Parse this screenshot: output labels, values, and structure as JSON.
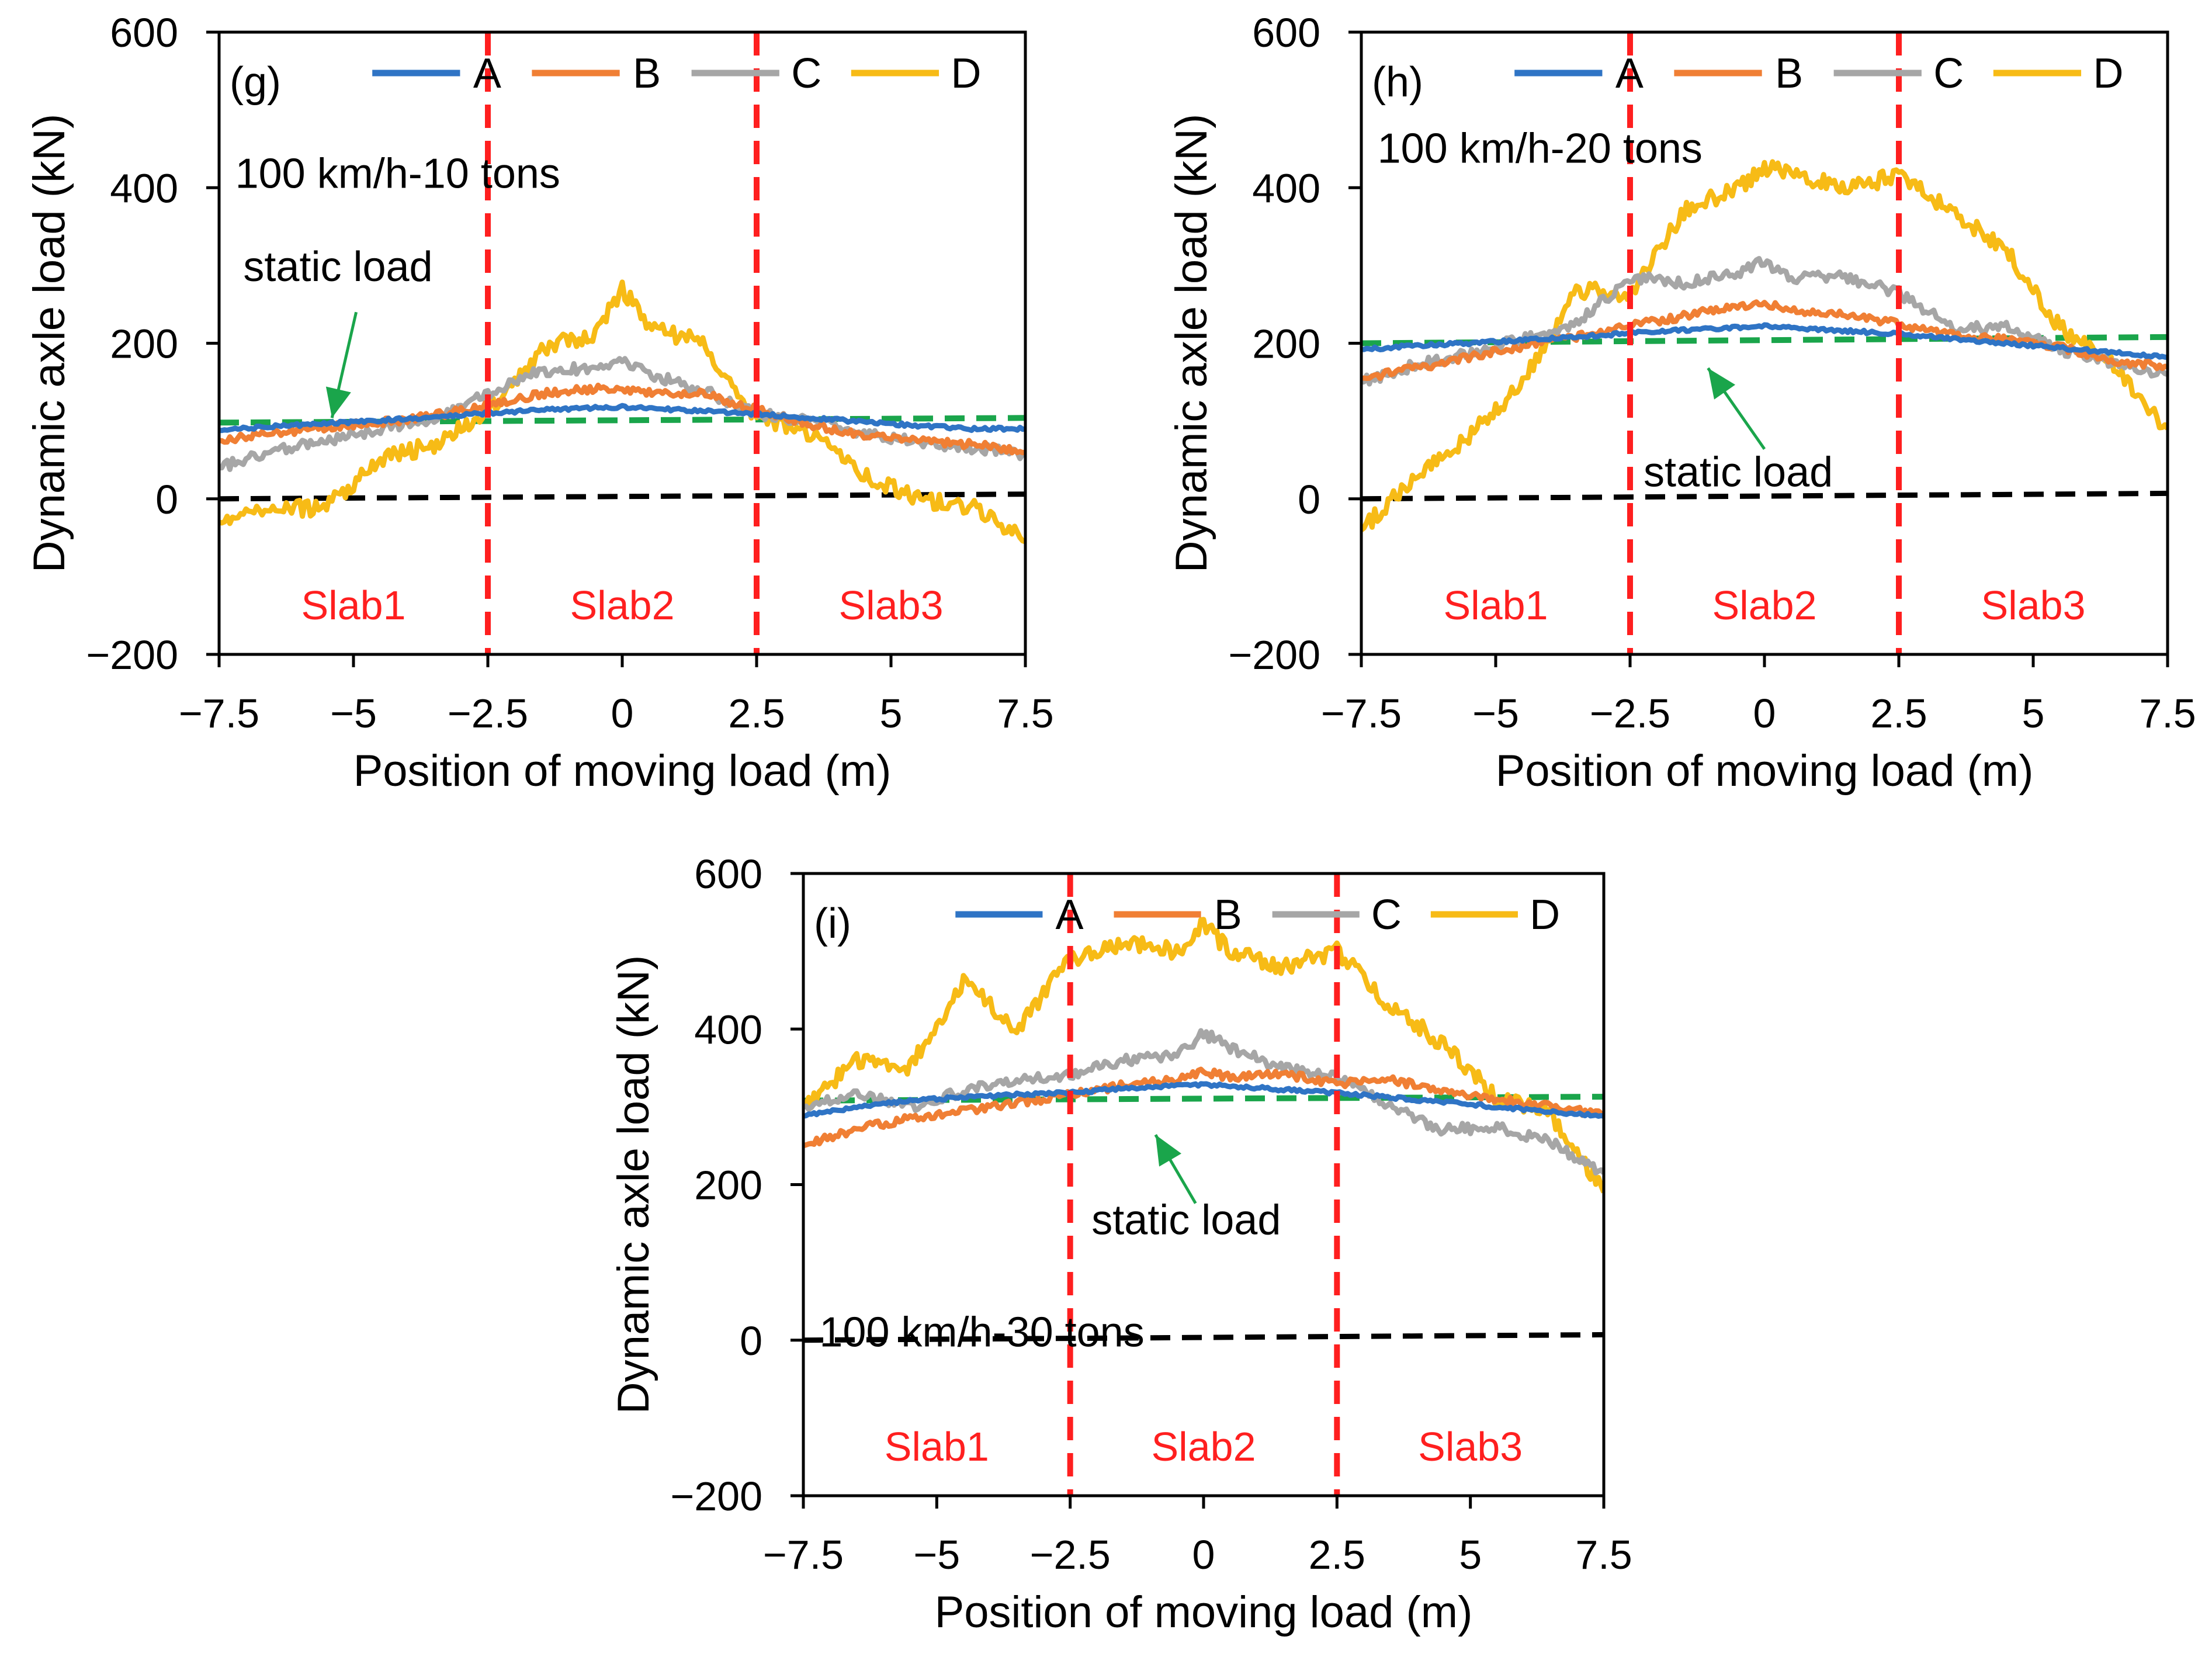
{
  "colors": {
    "A": "#2f74c5",
    "B": "#f07f34",
    "C": "#a6a6a6",
    "D": "#f7bb16",
    "static": "#1aa54b",
    "zero": "#000000",
    "slab_boundary": "#ff1f1f",
    "slab_label": "#ff1f1f",
    "axis": "#000000"
  },
  "chart_data": [
    {
      "type": "line",
      "panel": "(g)",
      "condition": "100 km/h-10 tons",
      "xlabel": "Position of moving load (m)",
      "ylabel": "Dynamic axle load (kN)",
      "xlim": [
        -7.5,
        7.5
      ],
      "ylim": [
        -200,
        600
      ],
      "xticks": [
        -7.5,
        -5,
        -2.5,
        0,
        2.5,
        5,
        7.5
      ],
      "xtick_labels": [
        "−7.5",
        "−5",
        "−2.5",
        "0",
        "2.5",
        "5",
        "7.5"
      ],
      "yticks": [
        -200,
        0,
        200,
        400,
        600
      ],
      "ytick_labels": [
        "−200",
        "0",
        "200",
        "400",
        "600"
      ],
      "legend": [
        "A",
        "B",
        "C",
        "D"
      ],
      "slab_boundaries": [
        -2.5,
        2.5
      ],
      "slab_labels": [
        "Slab1",
        "Slab2",
        "Slab3"
      ],
      "static_label": "static load",
      "static_load": [
        [
          -7.5,
          98
        ],
        [
          7.5,
          104
        ]
      ],
      "zero_line": [
        [
          -7.5,
          0
        ],
        [
          7.5,
          6
        ]
      ],
      "x": [
        -7.5,
        -6.5,
        -5.5,
        -4.5,
        -3.5,
        -2.5,
        -1.5,
        -0.5,
        0,
        0.5,
        1.5,
        2.5,
        3.5,
        4.5,
        5.5,
        6.5,
        7.5
      ],
      "series": [
        {
          "name": "A",
          "values": [
            88,
            93,
            97,
            101,
            105,
            110,
            114,
            117,
            118,
            116,
            113,
            109,
            104,
            99,
            94,
            90,
            90
          ]
        },
        {
          "name": "B",
          "values": [
            75,
            85,
            92,
            98,
            107,
            120,
            135,
            142,
            140,
            138,
            135,
            115,
            95,
            82,
            75,
            70,
            60
          ]
        },
        {
          "name": "C",
          "values": [
            40,
            62,
            75,
            90,
            102,
            135,
            165,
            168,
            180,
            160,
            140,
            110,
            100,
            85,
            72,
            65,
            58
          ]
        },
        {
          "name": "D",
          "values": [
            -30,
            -15,
            -10,
            50,
            70,
            110,
            195,
            210,
            270,
            220,
            200,
            105,
            85,
            30,
            0,
            -10,
            -55
          ]
        }
      ]
    },
    {
      "type": "line",
      "panel": "(h)",
      "condition": "100 km/h-20 tons",
      "xlabel": "Position of moving load (m)",
      "ylabel": "Dynamic axle load (kN)",
      "xlim": [
        -7.5,
        7.5
      ],
      "ylim": [
        -200,
        600
      ],
      "xticks": [
        -7.5,
        -5,
        -2.5,
        0,
        2.5,
        5,
        7.5
      ],
      "xtick_labels": [
        "−7.5",
        "−5",
        "−2.5",
        "0",
        "2.5",
        "5",
        "7.5"
      ],
      "yticks": [
        -200,
        0,
        200,
        400,
        600
      ],
      "ytick_labels": [
        "−200",
        "0",
        "200",
        "400",
        "600"
      ],
      "legend": [
        "A",
        "B",
        "C",
        "D"
      ],
      "slab_boundaries": [
        -2.5,
        2.5
      ],
      "slab_labels": [
        "Slab1",
        "Slab2",
        "Slab3"
      ],
      "static_label": "static load",
      "static_load": [
        [
          -7.5,
          200
        ],
        [
          7.5,
          208
        ]
      ],
      "zero_line": [
        [
          -7.5,
          0
        ],
        [
          7.5,
          7
        ]
      ],
      "x": [
        -7.5,
        -6.5,
        -5.5,
        -4.5,
        -3.5,
        -2.5,
        -1.5,
        -0.5,
        0,
        0.5,
        1.5,
        2.5,
        3.5,
        4.5,
        5.5,
        6.5,
        7.5
      ],
      "series": [
        {
          "name": "A",
          "values": [
            192,
            197,
            200,
            204,
            208,
            213,
            217,
            220,
            222,
            220,
            216,
            212,
            206,
            200,
            194,
            188,
            182
          ]
        },
        {
          "name": "B",
          "values": [
            155,
            168,
            182,
            196,
            208,
            222,
            235,
            248,
            252,
            242,
            238,
            225,
            210,
            205,
            195,
            178,
            170
          ]
        },
        {
          "name": "C",
          "values": [
            150,
            172,
            188,
            205,
            225,
            285,
            278,
            290,
            305,
            285,
            285,
            265,
            220,
            220,
            192,
            175,
            160
          ]
        },
        {
          "name": "D",
          "values": [
            -40,
            30,
            80,
            150,
            270,
            260,
            370,
            400,
            425,
            420,
            400,
            415,
            370,
            320,
            220,
            170,
            90
          ]
        }
      ]
    },
    {
      "type": "line",
      "panel": "(i)",
      "condition": "100 km/h-30 tons",
      "xlabel": "Position of moving load (m)",
      "ylabel": "Dynamic axle load (kN)",
      "xlim": [
        -7.5,
        7.5
      ],
      "ylim": [
        -200,
        600
      ],
      "xticks": [
        -7.5,
        -5,
        -2.5,
        0,
        2.5,
        5,
        7.5
      ],
      "xtick_labels": [
        "−7.5",
        "−5",
        "−2.5",
        "0",
        "2.5",
        "5",
        "7.5"
      ],
      "yticks": [
        -200,
        0,
        200,
        400,
        600
      ],
      "ytick_labels": [
        "−200",
        "0",
        "200",
        "400",
        "600"
      ],
      "legend": [
        "A",
        "B",
        "C",
        "D"
      ],
      "slab_boundaries": [
        -2.5,
        2.5
      ],
      "slab_labels": [
        "Slab1",
        "Slab2",
        "Slab3"
      ],
      "static_label": "static load",
      "static_load": [
        [
          -7.5,
          308
        ],
        [
          7.5,
          313
        ]
      ],
      "zero_line": [
        [
          -7.5,
          0
        ],
        [
          7.5,
          7
        ]
      ],
      "x": [
        -7.5,
        -6.5,
        -5.5,
        -4.5,
        -3.5,
        -2.5,
        -1.5,
        -0.5,
        0,
        0.5,
        1.5,
        2.5,
        3.5,
        4.5,
        5.5,
        6.5,
        7.5
      ],
      "series": [
        {
          "name": "A",
          "values": [
            288,
            300,
            308,
            312,
            316,
            318,
            324,
            327,
            328,
            327,
            322,
            318,
            312,
            306,
            300,
            294,
            288
          ]
        },
        {
          "name": "B",
          "values": [
            250,
            272,
            285,
            295,
            305,
            315,
            328,
            335,
            345,
            338,
            342,
            330,
            335,
            320,
            310,
            300,
            290
          ]
        },
        {
          "name": "C",
          "values": [
            300,
            318,
            300,
            320,
            335,
            340,
            360,
            365,
            395,
            375,
            350,
            340,
            300,
            270,
            275,
            255,
            215
          ]
        },
        {
          "name": "D",
          "values": [
            300,
            360,
            350,
            460,
            400,
            490,
            510,
            500,
            535,
            500,
            480,
            500,
            430,
            380,
            310,
            290,
            190
          ]
        }
      ]
    }
  ]
}
